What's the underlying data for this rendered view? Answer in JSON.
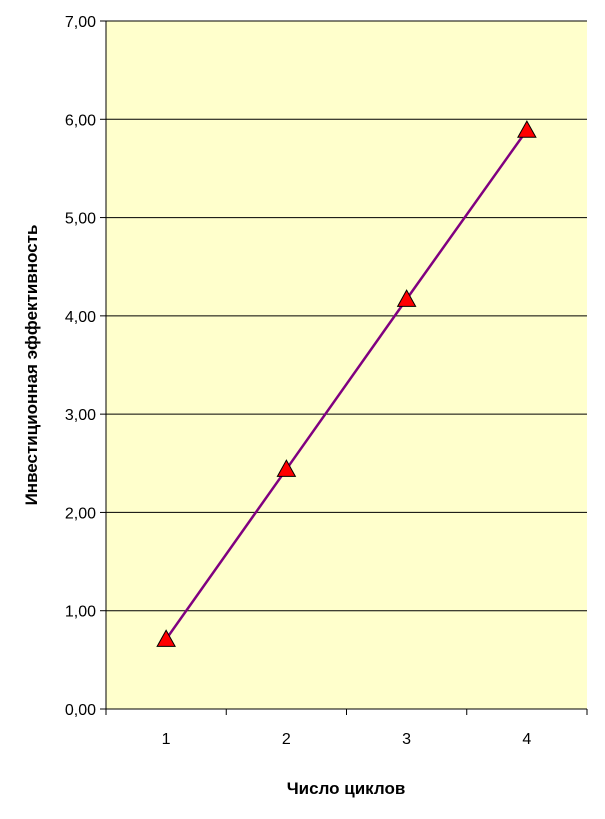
{
  "chart_data": {
    "type": "line",
    "title": "",
    "xlabel": "Число циклов",
    "ylabel": "Инвестиционная эффективность",
    "categories": [
      "1",
      "2",
      "3",
      "4"
    ],
    "series": [
      {
        "values": [
          0.71,
          2.44,
          4.17,
          5.89
        ],
        "line_color": "#800080",
        "marker": "triangle",
        "marker_color": "#ff0000"
      }
    ],
    "ylim": [
      0,
      7
    ],
    "y_ticks": [
      "0,00",
      "1,00",
      "2,00",
      "3,00",
      "4,00",
      "5,00",
      "6,00",
      "7,00"
    ],
    "grid": true,
    "legend": "none",
    "plot_background": "#ffffcc"
  }
}
